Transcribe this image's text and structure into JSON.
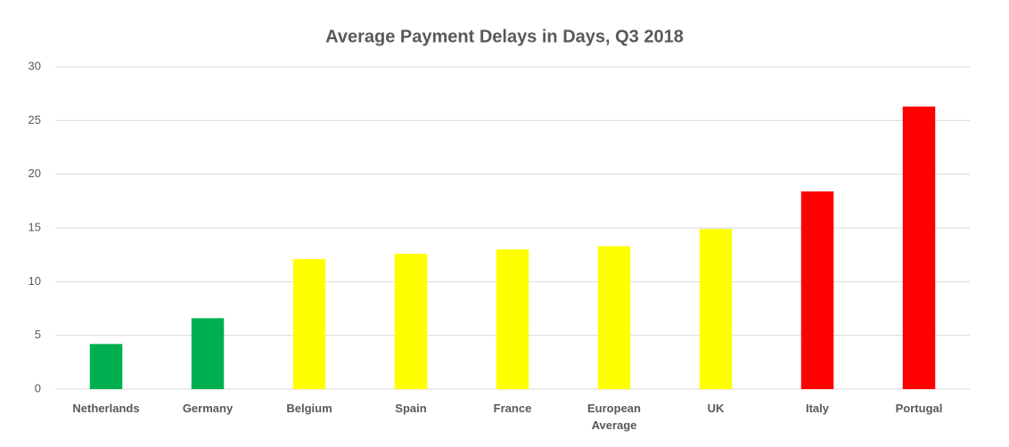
{
  "chart_data": {
    "type": "bar",
    "title": "Average Payment Delays in Days, Q3 2018",
    "categories": [
      "Netherlands",
      "Germany",
      "Belgium",
      "Spain",
      "France",
      "European Average",
      "UK",
      "Italy",
      "Portugal"
    ],
    "values": [
      4.2,
      6.6,
      12.1,
      12.6,
      13.0,
      13.3,
      14.9,
      18.4,
      26.3
    ],
    "colors": [
      "#00b050",
      "#00b050",
      "#ffff00",
      "#ffff00",
      "#ffff00",
      "#ffff00",
      "#ffff00",
      "#ff0000",
      "#ff0000"
    ],
    "ylim": [
      0,
      30
    ],
    "yticks": [
      0,
      5,
      10,
      15,
      20,
      25,
      30
    ],
    "grid": true
  }
}
